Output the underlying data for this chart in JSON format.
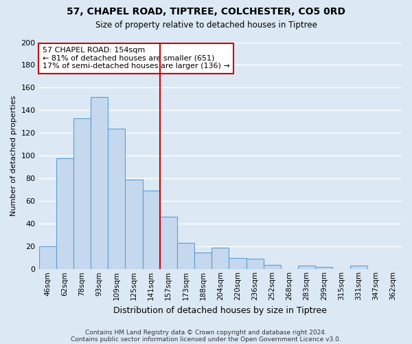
{
  "title": "57, CHAPEL ROAD, TIPTREE, COLCHESTER, CO5 0RD",
  "subtitle": "Size of property relative to detached houses in Tiptree",
  "xlabel": "Distribution of detached houses by size in Tiptree",
  "ylabel": "Number of detached properties",
  "bar_labels": [
    "46sqm",
    "62sqm",
    "78sqm",
    "93sqm",
    "109sqm",
    "125sqm",
    "141sqm",
    "157sqm",
    "173sqm",
    "188sqm",
    "204sqm",
    "220sqm",
    "236sqm",
    "252sqm",
    "268sqm",
    "283sqm",
    "299sqm",
    "315sqm",
    "331sqm",
    "347sqm",
    "362sqm"
  ],
  "bar_values": [
    20,
    98,
    133,
    152,
    124,
    79,
    69,
    46,
    23,
    15,
    19,
    10,
    9,
    4,
    0,
    3,
    2,
    0,
    3,
    0,
    0
  ],
  "bar_color": "#c5d8ed",
  "bar_edge_color": "#5a9fd4",
  "ylim": [
    0,
    200
  ],
  "yticks": [
    0,
    20,
    40,
    60,
    80,
    100,
    120,
    140,
    160,
    180,
    200
  ],
  "property_line_color": "#cc0000",
  "property_line_bar_index": 7,
  "annotation_title": "57 CHAPEL ROAD: 154sqm",
  "annotation_line1": "← 81% of detached houses are smaller (651)",
  "annotation_line2": "17% of semi-detached houses are larger (136) →",
  "annotation_box_color": "#cc0000",
  "footnote1": "Contains HM Land Registry data © Crown copyright and database right 2024.",
  "footnote2": "Contains public sector information licensed under the Open Government Licence v3.0.",
  "background_color": "#dce9f5",
  "grid_color": "#ffffff"
}
